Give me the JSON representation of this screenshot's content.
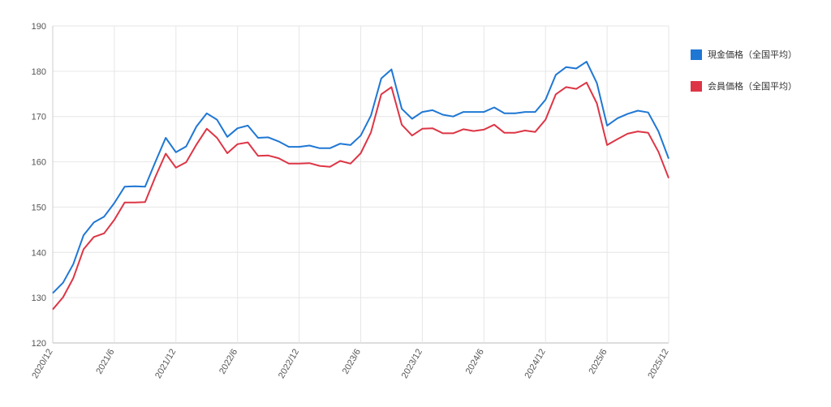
{
  "chart_data": {
    "type": "line",
    "title": "",
    "xlabel": "",
    "ylabel": "",
    "ylim": [
      120,
      190
    ],
    "yticks": [
      "120",
      "130",
      "140",
      "150",
      "160",
      "170",
      "180",
      "190"
    ],
    "xticks": [
      "2020/12",
      "2021/6",
      "2021/12",
      "2022/6",
      "2022/12",
      "2023/6",
      "2023/12",
      "2024/6",
      "2024/12",
      "2025/6",
      "2025/12"
    ],
    "grid": true,
    "legend_position": "right",
    "x": [
      "2020/12",
      "2021/1",
      "2021/2",
      "2021/3",
      "2021/4",
      "2021/5",
      "2021/6",
      "2021/7",
      "2021/8",
      "2021/9",
      "2021/10",
      "2021/11",
      "2021/12",
      "2022/1",
      "2022/2",
      "2022/3",
      "2022/4",
      "2022/5",
      "2022/6",
      "2022/7",
      "2022/8",
      "2022/9",
      "2022/10",
      "2022/11",
      "2022/12",
      "2023/1",
      "2023/2",
      "2023/3",
      "2023/4",
      "2023/5",
      "2023/6",
      "2023/7",
      "2023/8",
      "2023/9",
      "2023/10",
      "2023/11",
      "2023/12",
      "2024/1",
      "2024/2",
      "2024/3",
      "2024/4",
      "2024/5",
      "2024/6",
      "2024/7",
      "2024/8",
      "2024/9",
      "2024/10",
      "2024/11",
      "2024/12",
      "2025/1",
      "2025/2",
      "2025/3",
      "2025/4",
      "2025/5",
      "2025/6",
      "2025/7",
      "2025/8",
      "2025/9",
      "2025/10",
      "2025/11",
      "2025/12"
    ],
    "series": [
      {
        "name": "現金価格（全国平均）",
        "color": "#1f77d4",
        "values": [
          131.0,
          133.3,
          137.4,
          143.8,
          146.6,
          147.9,
          150.9,
          154.5,
          154.6,
          154.5,
          160.0,
          165.3,
          162.1,
          163.4,
          167.8,
          170.7,
          169.3,
          165.5,
          167.4,
          168.0,
          165.3,
          165.4,
          164.5,
          163.3,
          163.3,
          163.6,
          163.0,
          163.0,
          164.0,
          163.7,
          165.8,
          170.2,
          178.4,
          180.4,
          171.7,
          169.5,
          171.0,
          171.4,
          170.4,
          170.0,
          171.0,
          171.0,
          171.0,
          172.0,
          170.7,
          170.7,
          171.0,
          171.0,
          173.7,
          179.2,
          180.9,
          180.6,
          182.1,
          177.4,
          168.0,
          169.6,
          170.6,
          171.3,
          170.9,
          166.7,
          160.7
        ]
      },
      {
        "name": "会員価格（全国平均）",
        "color": "#dd3545",
        "values": [
          127.4,
          130.1,
          134.3,
          140.7,
          143.4,
          144.2,
          147.2,
          151.0,
          151.0,
          151.1,
          156.7,
          161.8,
          158.7,
          159.9,
          163.8,
          167.3,
          165.3,
          161.9,
          163.9,
          164.3,
          161.3,
          161.4,
          160.8,
          159.6,
          159.6,
          159.7,
          159.1,
          158.9,
          160.2,
          159.6,
          161.9,
          166.5,
          174.9,
          176.5,
          168.2,
          165.8,
          167.3,
          167.4,
          166.3,
          166.3,
          167.2,
          166.8,
          167.1,
          168.2,
          166.4,
          166.4,
          166.9,
          166.6,
          169.3,
          174.9,
          176.5,
          176.1,
          177.5,
          172.9,
          163.7,
          165.0,
          166.2,
          166.7,
          166.4,
          162.2,
          156.4
        ]
      }
    ]
  }
}
